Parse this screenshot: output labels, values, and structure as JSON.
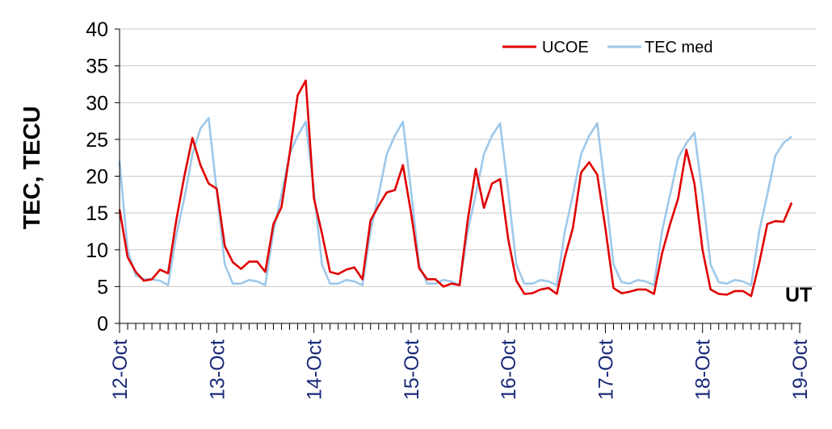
{
  "chart_data": {
    "type": "line",
    "ylabel": "TEC, TECU",
    "xlabel": "",
    "unit_label": "UT",
    "ylim": [
      0,
      40
    ],
    "yticks": [
      0,
      5,
      10,
      15,
      20,
      25,
      30,
      35,
      40
    ],
    "grid": "horizontal",
    "legend_position": "top-right",
    "x_unit": "hours since 12-Oct 00:00 UT",
    "xlim": [
      0,
      168
    ],
    "date_ticks": [
      {
        "label": "12-Oct",
        "x": 0
      },
      {
        "label": "13-Oct",
        "x": 24
      },
      {
        "label": "14-Oct",
        "x": 48
      },
      {
        "label": "15-Oct",
        "x": 72
      },
      {
        "label": "16-Oct",
        "x": 96
      },
      {
        "label": "17-Oct",
        "x": 120
      },
      {
        "label": "18-Oct",
        "x": 144
      },
      {
        "label": "19-Oct",
        "x": 168
      }
    ],
    "series": [
      {
        "name": "UCOE",
        "color": "#e00000",
        "points": [
          [
            0,
            15.5
          ],
          [
            2,
            9
          ],
          [
            4,
            7
          ],
          [
            6,
            5.8
          ],
          [
            8,
            6
          ],
          [
            10,
            7.3
          ],
          [
            12,
            6.8
          ],
          [
            14,
            14
          ],
          [
            16,
            20
          ],
          [
            18,
            25.2
          ],
          [
            20,
            21.5
          ],
          [
            22,
            19
          ],
          [
            24,
            18.3
          ],
          [
            26,
            10.5
          ],
          [
            28,
            8.3
          ],
          [
            30,
            7.4
          ],
          [
            32,
            8.4
          ],
          [
            34,
            8.4
          ],
          [
            36,
            7
          ],
          [
            38,
            13.5
          ],
          [
            40,
            15.8
          ],
          [
            42,
            23
          ],
          [
            44,
            31
          ],
          [
            46,
            33
          ],
          [
            48,
            17
          ],
          [
            50,
            12.2
          ],
          [
            52,
            7
          ],
          [
            54,
            6.7
          ],
          [
            56,
            7.3
          ],
          [
            58,
            7.6
          ],
          [
            60,
            6
          ],
          [
            62,
            14
          ],
          [
            64,
            16
          ],
          [
            66,
            17.8
          ],
          [
            68,
            18.1
          ],
          [
            70,
            21.5
          ],
          [
            72,
            15
          ],
          [
            74,
            7.5
          ],
          [
            76,
            6
          ],
          [
            78,
            6
          ],
          [
            80,
            5
          ],
          [
            82,
            5.4
          ],
          [
            84,
            5.2
          ],
          [
            86,
            14
          ],
          [
            88,
            21
          ],
          [
            90,
            15.7
          ],
          [
            92,
            19
          ],
          [
            94,
            19.6
          ],
          [
            96,
            11.5
          ],
          [
            98,
            5.8
          ],
          [
            100,
            4
          ],
          [
            102,
            4.1
          ],
          [
            104,
            4.6
          ],
          [
            106,
            4.8
          ],
          [
            108,
            4
          ],
          [
            110,
            9
          ],
          [
            112,
            13
          ],
          [
            114,
            20.5
          ],
          [
            116,
            21.9
          ],
          [
            118,
            20.2
          ],
          [
            120,
            13
          ],
          [
            122,
            4.8
          ],
          [
            124,
            4.1
          ],
          [
            126,
            4.3
          ],
          [
            128,
            4.6
          ],
          [
            130,
            4.6
          ],
          [
            132,
            4
          ],
          [
            134,
            9.5
          ],
          [
            136,
            13.5
          ],
          [
            138,
            17
          ],
          [
            140,
            23.6
          ],
          [
            142,
            19
          ],
          [
            144,
            10
          ],
          [
            146,
            4.6
          ],
          [
            148,
            4
          ],
          [
            150,
            3.9
          ],
          [
            152,
            4.4
          ],
          [
            154,
            4.4
          ],
          [
            156,
            3.7
          ],
          [
            158,
            8.2
          ],
          [
            160,
            13.5
          ],
          [
            162,
            13.9
          ],
          [
            164,
            13.8
          ],
          [
            166,
            16.4
          ]
        ]
      },
      {
        "name": "TEC med",
        "color": "#9dc8ea",
        "points": [
          [
            0,
            22
          ],
          [
            2,
            10
          ],
          [
            4,
            6.5
          ],
          [
            6,
            6
          ],
          [
            8,
            6
          ],
          [
            10,
            5.8
          ],
          [
            12,
            5.2
          ],
          [
            14,
            12
          ],
          [
            16,
            17
          ],
          [
            18,
            23
          ],
          [
            20,
            26.5
          ],
          [
            22,
            27.9
          ],
          [
            24,
            18
          ],
          [
            26,
            8
          ],
          [
            28,
            5.4
          ],
          [
            30,
            5.4
          ],
          [
            32,
            5.9
          ],
          [
            34,
            5.7
          ],
          [
            36,
            5.2
          ],
          [
            38,
            12.5
          ],
          [
            40,
            17.5
          ],
          [
            42,
            23
          ],
          [
            44,
            25.5
          ],
          [
            46,
            27.4
          ],
          [
            48,
            18
          ],
          [
            50,
            8
          ],
          [
            52,
            5.4
          ],
          [
            54,
            5.4
          ],
          [
            56,
            5.9
          ],
          [
            58,
            5.7
          ],
          [
            60,
            5.2
          ],
          [
            62,
            12.5
          ],
          [
            64,
            17.5
          ],
          [
            66,
            23
          ],
          [
            68,
            25.5
          ],
          [
            70,
            27.4
          ],
          [
            72,
            18
          ],
          [
            74,
            8
          ],
          [
            76,
            5.4
          ],
          [
            78,
            5.4
          ],
          [
            80,
            5.9
          ],
          [
            82,
            5.7
          ],
          [
            84,
            5.2
          ],
          [
            86,
            12.5
          ],
          [
            88,
            17.5
          ],
          [
            90,
            23
          ],
          [
            92,
            25.5
          ],
          [
            94,
            27.2
          ],
          [
            96,
            18
          ],
          [
            98,
            8
          ],
          [
            100,
            5.4
          ],
          [
            102,
            5.4
          ],
          [
            104,
            5.9
          ],
          [
            106,
            5.7
          ],
          [
            108,
            5.2
          ],
          [
            110,
            12.5
          ],
          [
            112,
            17.5
          ],
          [
            114,
            23
          ],
          [
            116,
            25.5
          ],
          [
            118,
            27.2
          ],
          [
            120,
            18
          ],
          [
            122,
            8
          ],
          [
            124,
            5.6
          ],
          [
            126,
            5.4
          ],
          [
            128,
            5.9
          ],
          [
            130,
            5.7
          ],
          [
            132,
            5.2
          ],
          [
            134,
            12.5
          ],
          [
            136,
            17.5
          ],
          [
            138,
            22.5
          ],
          [
            140,
            24.5
          ],
          [
            142,
            25.9
          ],
          [
            144,
            17.5
          ],
          [
            146,
            8
          ],
          [
            148,
            5.6
          ],
          [
            150,
            5.4
          ],
          [
            152,
            5.9
          ],
          [
            154,
            5.7
          ],
          [
            156,
            5.2
          ],
          [
            158,
            12.5
          ],
          [
            160,
            17.5
          ],
          [
            162,
            22.8
          ],
          [
            164,
            24.5
          ],
          [
            166,
            25.4
          ]
        ]
      }
    ]
  }
}
